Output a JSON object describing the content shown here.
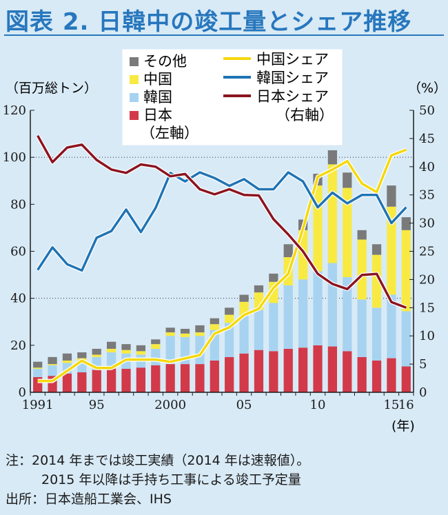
{
  "title": "図表 2. 日韓中の竣工量とシェア推移",
  "left_unit": "（百万総トン）",
  "right_unit": "（%）",
  "year_unit": "(年)",
  "legend": {
    "bars": [
      "その他",
      "中国",
      "韓国",
      "日本"
    ],
    "bars_axis_note": "（左軸）",
    "lines": [
      "中国シェア",
      "韓国シェア",
      "日本シェア"
    ],
    "lines_axis_note": "（右軸）"
  },
  "notes": {
    "line1": "注：2014 年までは竣工実績（2014 年は速報値）。",
    "line2": "2015 年以降は手持ち工事による竣工予定量",
    "source": "出所：日本造船工業会、IHS"
  },
  "colors": {
    "background": "#d8eaf6",
    "title": "#2777bd",
    "other": "#7a7a7a",
    "china": "#f8ea42",
    "korea": "#a7d3f1",
    "japan": "#d23a4a",
    "china_line": "#f5d80a",
    "korea_line": "#1f74b4",
    "japan_line": "#8b1420",
    "gridline": "#2b2b2b"
  },
  "chart_data": {
    "type": "bar",
    "stacked": true,
    "categories": [
      1991,
      1992,
      1993,
      1994,
      1995,
      1996,
      1997,
      1998,
      1999,
      2000,
      2001,
      2002,
      2003,
      2004,
      2005,
      2006,
      2007,
      2008,
      2009,
      2010,
      2011,
      2012,
      2013,
      2014,
      2015,
      2016
    ],
    "x_tick_labels": [
      {
        "year": 1991,
        "label": "1991"
      },
      {
        "year": 1995,
        "label": "95"
      },
      {
        "year": 2000,
        "label": "2000"
      },
      {
        "year": 2005,
        "label": "05"
      },
      {
        "year": 2010,
        "label": "10"
      },
      {
        "year": 2015,
        "label": "15"
      },
      {
        "year": 2016,
        "label": "16"
      }
    ],
    "left_axis": {
      "min": 0,
      "max": 120,
      "ticks": [
        0,
        20,
        40,
        60,
        80,
        100,
        120
      ]
    },
    "right_axis": {
      "min": 0,
      "max": 50,
      "ticks": [
        0,
        5,
        10,
        15,
        20,
        25,
        30,
        35,
        40,
        45,
        50
      ]
    },
    "gridlines": [
      40,
      100
    ],
    "series": [
      {
        "name": "日本",
        "axis": "left",
        "kind": "bar",
        "values": [
          6.5,
          7.0,
          8.0,
          8.5,
          9.5,
          10.0,
          10.0,
          10.5,
          11.5,
          12.0,
          12.0,
          12.0,
          13.5,
          15.0,
          16.5,
          18.0,
          17.5,
          18.5,
          19.0,
          20.0,
          19.5,
          17.5,
          15.0,
          13.5,
          14.5,
          11.0
        ]
      },
      {
        "name": "韓国",
        "axis": "left",
        "kind": "bar",
        "values": [
          3.5,
          4.5,
          4.5,
          5.0,
          5.5,
          7.0,
          6.5,
          5.5,
          7.0,
          12.0,
          11.5,
          12.0,
          13.0,
          14.5,
          16.0,
          17.0,
          20.5,
          27.0,
          29.0,
          31.5,
          35.5,
          31.5,
          24.5,
          22.5,
          27.0,
          23.5
        ]
      },
      {
        "name": "中国",
        "axis": "left",
        "kind": "bar",
        "values": [
          0.5,
          0.5,
          1.0,
          1.0,
          1.0,
          1.5,
          1.5,
          1.5,
          2.0,
          1.5,
          1.5,
          1.5,
          2.5,
          3.5,
          6.0,
          7.5,
          9.0,
          12.0,
          21.0,
          36.5,
          42.0,
          38.0,
          25.5,
          22.5,
          37.5,
          34.5
        ]
      },
      {
        "name": "その他",
        "axis": "left",
        "kind": "bar",
        "values": [
          2.5,
          3.0,
          3.0,
          2.5,
          2.5,
          3.0,
          2.5,
          2.5,
          2.0,
          2.0,
          2.0,
          3.0,
          2.5,
          3.0,
          3.0,
          3.0,
          3.5,
          5.5,
          4.5,
          5.0,
          6.0,
          6.5,
          4.0,
          4.5,
          9.0,
          5.5
        ]
      },
      {
        "name": "中国シェア",
        "axis": "right",
        "kind": "line",
        "values": [
          2.0,
          2.0,
          3.8,
          5.6,
          4.3,
          4.3,
          5.8,
          5.8,
          5.8,
          5.4,
          6.0,
          6.6,
          10.4,
          11.5,
          13.7,
          14.8,
          18.5,
          21.0,
          29.0,
          38.2,
          39.5,
          41.0,
          37.0,
          35.5,
          42.0,
          43.0
        ]
      },
      {
        "name": "韓国シェア",
        "axis": "right",
        "kind": "line",
        "values": [
          21.7,
          25.7,
          22.7,
          21.6,
          27.4,
          28.6,
          32.4,
          28.4,
          32.7,
          38.9,
          37.4,
          39.0,
          38.0,
          36.6,
          37.8,
          36.0,
          36.0,
          39.0,
          37.4,
          32.8,
          35.4,
          33.5,
          35.0,
          35.0,
          30.0,
          32.8
        ]
      },
      {
        "name": "日本シェア",
        "axis": "right",
        "kind": "line",
        "values": [
          45.5,
          40.8,
          43.4,
          43.9,
          41.2,
          39.5,
          38.9,
          40.4,
          40.0,
          38.3,
          38.7,
          36.0,
          35.1,
          36.0,
          35.0,
          34.9,
          30.7,
          28.0,
          25.0,
          21.0,
          19.2,
          18.3,
          20.8,
          21.0,
          16.0,
          15.0
        ]
      }
    ]
  }
}
